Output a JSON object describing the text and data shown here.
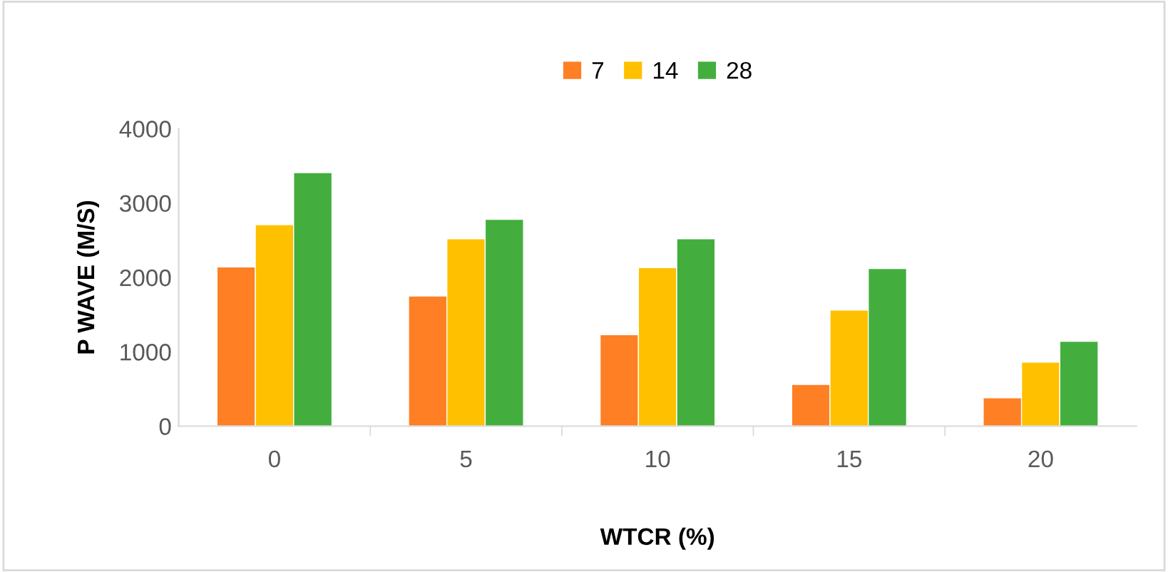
{
  "chart_data": {
    "type": "bar",
    "xlabel": "WTCR (%)",
    "ylabel": "P WAVE (M/S)",
    "categories": [
      "0",
      "5",
      "10",
      "15",
      "20"
    ],
    "series": [
      {
        "name": "7",
        "color": "#fe7f24",
        "values": [
          2140,
          1750,
          1230,
          560,
          380
        ]
      },
      {
        "name": "14",
        "color": "#ffc000",
        "values": [
          2710,
          2520,
          2130,
          1560,
          860
        ]
      },
      {
        "name": "28",
        "color": "#43ae3d",
        "values": [
          3410,
          2780,
          2520,
          2120,
          1140
        ]
      }
    ],
    "ylim": [
      0,
      4000
    ],
    "yticks": [
      0,
      1000,
      2000,
      3000,
      4000
    ],
    "grid": false,
    "legend": "top"
  }
}
